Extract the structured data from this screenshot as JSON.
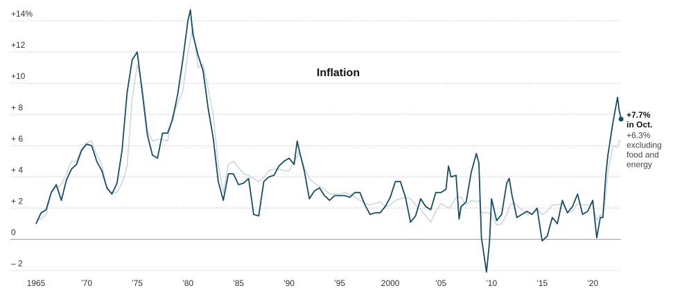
{
  "chart_data": {
    "type": "line",
    "title": "Inflation",
    "x": [
      1965,
      1965.5,
      1966,
      1966.5,
      1967,
      1967.5,
      1968,
      1968.5,
      1969,
      1969.5,
      1970,
      1970.5,
      1971,
      1971.5,
      1972,
      1972.5,
      1973,
      1973.5,
      1974,
      1974.5,
      1975,
      1975.5,
      1976,
      1976.5,
      1977,
      1977.5,
      1978,
      1978.5,
      1979,
      1979.5,
      1980,
      1980.25,
      1980.5,
      1981,
      1981.5,
      1982,
      1982.5,
      1983,
      1983.5,
      1984,
      1984.5,
      1985,
      1985.5,
      1986,
      1986.5,
      1987,
      1987.5,
      1988,
      1988.5,
      1989,
      1989.5,
      1990,
      1990.5,
      1990.8,
      1991,
      1991.5,
      1992,
      1992.5,
      1993,
      1993.5,
      1994,
      1994.5,
      1995,
      1995.5,
      1996,
      1996.5,
      1997,
      1997.5,
      1998,
      1998.5,
      1999,
      1999.5,
      2000,
      2000.5,
      2001,
      2001.5,
      2002,
      2002.5,
      2003,
      2003.5,
      2004,
      2004.5,
      2005,
      2005.5,
      2005.75,
      2006,
      2006.5,
      2006.8,
      2007,
      2007.5,
      2008,
      2008.5,
      2008.75,
      2009,
      2009.5,
      2009.8,
      2010,
      2010.5,
      2011,
      2011.5,
      2011.75,
      2012,
      2012.5,
      2013,
      2013.5,
      2014,
      2014.5,
      2015,
      2015.5,
      2016,
      2016.5,
      2017,
      2017.5,
      2018,
      2018.5,
      2019,
      2019.5,
      2020,
      2020.4,
      2020.75,
      2021,
      2021.3,
      2021.5,
      2022,
      2022.45,
      2022.6,
      2022.8
    ],
    "series": [
      {
        "color": "#c8d5e2",
        "values": [
          1.2,
          1.3,
          1.6,
          3.0,
          3.3,
          3.5,
          4.2,
          5.0,
          5.0,
          5.8,
          6.2,
          6.3,
          5.4,
          4.8,
          3.2,
          3.0,
          3.0,
          3.6,
          4.7,
          9.0,
          11.2,
          9.8,
          7.0,
          6.3,
          6.4,
          6.4,
          6.3,
          8.0,
          8.7,
          9.5,
          11.9,
          12.8,
          13.6,
          11.0,
          11.2,
          9.6,
          8.0,
          4.8,
          3.0,
          4.8,
          5.0,
          4.6,
          4.2,
          4.1,
          3.9,
          3.7,
          4.0,
          4.4,
          4.5,
          4.5,
          4.4,
          4.4,
          5.0,
          5.3,
          5.6,
          4.6,
          3.9,
          3.6,
          3.4,
          3.2,
          2.9,
          2.9,
          2.9,
          3.0,
          2.9,
          2.7,
          2.5,
          2.3,
          2.2,
          2.3,
          2.4,
          2.1,
          2.2,
          2.5,
          2.6,
          2.7,
          2.6,
          2.2,
          1.9,
          1.5,
          1.1,
          1.8,
          2.3,
          2.1,
          2.0,
          2.1,
          2.7,
          2.7,
          2.7,
          2.2,
          2.5,
          2.4,
          2.5,
          1.7,
          1.7,
          1.7,
          1.6,
          0.9,
          1.0,
          1.6,
          2.1,
          2.3,
          2.2,
          1.9,
          1.6,
          1.6,
          1.9,
          1.6,
          1.8,
          2.2,
          2.2,
          2.3,
          1.7,
          1.8,
          2.3,
          2.2,
          2.2,
          2.3,
          1.2,
          1.6,
          1.4,
          3.0,
          4.3,
          6.0,
          5.9,
          6.3,
          6.3
        ],
        "end_label": [
          "+6.3%",
          "excluding",
          "food and",
          "energy"
        ]
      },
      {
        "color": "#124d63",
        "values": [
          1.0,
          1.7,
          1.9,
          3.0,
          3.5,
          2.5,
          3.8,
          4.5,
          4.8,
          5.7,
          6.1,
          6.0,
          5.0,
          4.4,
          3.3,
          2.9,
          3.6,
          5.7,
          9.4,
          11.5,
          12.0,
          9.4,
          6.7,
          5.4,
          5.2,
          6.8,
          6.8,
          7.7,
          9.3,
          11.5,
          14.0,
          14.7,
          13.1,
          11.8,
          10.8,
          8.4,
          6.5,
          3.7,
          2.5,
          4.2,
          4.2,
          3.5,
          3.6,
          3.9,
          1.6,
          1.5,
          3.7,
          4.0,
          4.1,
          4.7,
          5.0,
          5.2,
          4.8,
          6.3,
          5.7,
          4.4,
          2.6,
          3.1,
          3.3,
          2.8,
          2.5,
          2.8,
          2.8,
          2.8,
          2.7,
          3.0,
          3.0,
          2.2,
          1.6,
          1.7,
          1.7,
          2.1,
          2.7,
          3.7,
          3.7,
          2.7,
          1.1,
          1.5,
          2.6,
          2.1,
          1.9,
          3.0,
          3.0,
          3.2,
          4.7,
          4.0,
          4.1,
          1.3,
          2.1,
          2.4,
          4.3,
          5.5,
          4.9,
          0.1,
          -2.1,
          -0.2,
          2.6,
          1.2,
          1.6,
          3.6,
          3.9,
          2.9,
          1.4,
          1.6,
          1.8,
          1.6,
          2.0,
          -0.1,
          0.2,
          1.4,
          1.0,
          2.5,
          1.7,
          2.1,
          2.9,
          1.6,
          1.8,
          2.5,
          0.1,
          1.4,
          1.4,
          4.2,
          5.4,
          7.5,
          9.1,
          8.3,
          7.7
        ],
        "end_label": [
          "+7.7%",
          "in Oct."
        ]
      }
    ],
    "xlim": [
      1964.5,
      2023
    ],
    "xticks": [
      {
        "value": 1965,
        "label": "1965"
      },
      {
        "value": 1970,
        "label": "’70"
      },
      {
        "value": 1975,
        "label": "’75"
      },
      {
        "value": 1980,
        "label": "’80"
      },
      {
        "value": 1985,
        "label": "’85"
      },
      {
        "value": 1990,
        "label": "’90"
      },
      {
        "value": 1995,
        "label": "’95"
      },
      {
        "value": 2000,
        "label": "2000"
      },
      {
        "value": 2005,
        "label": "’05"
      },
      {
        "value": 2010,
        "label": "’10"
      },
      {
        "value": 2015,
        "label": "’15"
      },
      {
        "value": 2020,
        "label": "’20"
      }
    ],
    "ylim": [
      -2.5,
      14.8
    ],
    "yticks": [
      {
        "value": -2,
        "label": "– 2"
      },
      0,
      {
        "value": 2,
        "label": "+ 2"
      },
      {
        "value": 4,
        "label": "+ 4"
      },
      {
        "value": 6,
        "label": "+ 6"
      },
      {
        "value": 8,
        "label": "+ 8"
      },
      {
        "value": 10,
        "label": "+10"
      },
      {
        "value": 12,
        "label": "+12"
      },
      {
        "value": 14,
        "label": "+14%"
      }
    ],
    "grid": true
  }
}
